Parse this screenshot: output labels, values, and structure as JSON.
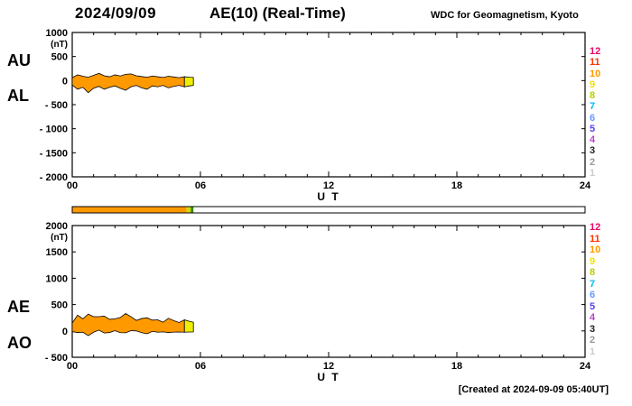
{
  "header": {
    "date": "2024/09/09",
    "title": "AE(10) (Real-Time)",
    "org": "WDC for Geomagnetism, Kyoto"
  },
  "footer": {
    "created_at": "[Created at 2024-09-09 05:40UT]"
  },
  "legend": {
    "items": [
      {
        "label": "12",
        "color": "#ee0066"
      },
      {
        "label": "11",
        "color": "#ff3300"
      },
      {
        "label": "10",
        "color": "#ff9900"
      },
      {
        "label": "9",
        "color": "#f2e200"
      },
      {
        "label": "8",
        "color": "#bbcc00"
      },
      {
        "label": "7",
        "color": "#00bbee"
      },
      {
        "label": "6",
        "color": "#6699ff"
      },
      {
        "label": "5",
        "color": "#5544ee"
      },
      {
        "label": "4",
        "color": "#bb44cc"
      },
      {
        "label": "3",
        "color": "#222222"
      },
      {
        "label": "2",
        "color": "#999999"
      },
      {
        "label": "1",
        "color": "#cccccc"
      }
    ]
  },
  "availability_bar": {
    "xlim": [
      0,
      24
    ],
    "segments": [
      {
        "from": 0,
        "to": 5.35,
        "color": "#ff9900"
      },
      {
        "from": 5.35,
        "to": 5.55,
        "color": "#ccdd00"
      },
      {
        "from": 5.55,
        "to": 5.67,
        "color": "#338800"
      }
    ]
  },
  "chart_data": [
    {
      "type": "area",
      "ylabel": "(nT)",
      "xlabel": "U T",
      "xlim": [
        0,
        24
      ],
      "ylim": [
        -2000,
        1000
      ],
      "xticks": [
        0,
        6,
        12,
        18,
        24
      ],
      "xtick_labels": [
        "00",
        "06",
        "12",
        "18",
        "24"
      ],
      "yticks": [
        1000,
        500,
        0,
        -500,
        -1000,
        -1500,
        -2000
      ],
      "ytick_labels": [
        "1000",
        "500",
        "0",
        "- 500",
        "- 1000",
        "- 1500",
        "- 2000"
      ],
      "left_labels": [
        "AU",
        "AL"
      ],
      "band_color": "#ff9900",
      "tip_color": "#eeee00",
      "tip_from_hour": 5.25,
      "x_hours": [
        0,
        0.25,
        0.5,
        0.75,
        1,
        1.25,
        1.5,
        1.75,
        2,
        2.25,
        2.5,
        2.75,
        3,
        3.25,
        3.5,
        3.75,
        4,
        4.25,
        4.5,
        4.75,
        5,
        5.25,
        5.5,
        5.67
      ],
      "series": [
        {
          "name": "AU",
          "values": [
            60,
            120,
            90,
            70,
            110,
            150,
            100,
            80,
            120,
            95,
            130,
            140,
            100,
            85,
            70,
            95,
            80,
            65,
            90,
            75,
            60,
            80,
            70,
            65
          ]
        },
        {
          "name": "AL",
          "values": [
            -90,
            -180,
            -140,
            -250,
            -160,
            -120,
            -180,
            -140,
            -110,
            -160,
            -200,
            -130,
            -100,
            -150,
            -180,
            -110,
            -130,
            -100,
            -150,
            -120,
            -100,
            -130,
            -110,
            -100
          ]
        }
      ]
    },
    {
      "type": "area",
      "ylabel": "(nT)",
      "xlabel": "U T",
      "xlim": [
        0,
        24
      ],
      "ylim": [
        -500,
        2000
      ],
      "xticks": [
        0,
        6,
        12,
        18,
        24
      ],
      "xtick_labels": [
        "00",
        "06",
        "12",
        "18",
        "24"
      ],
      "yticks": [
        2000,
        1500,
        1000,
        500,
        0,
        -500
      ],
      "ytick_labels": [
        "2000",
        "1500",
        "1000",
        "500",
        "0",
        "- 500"
      ],
      "left_labels": [
        "AE",
        "AO"
      ],
      "band_color": "#ff9900",
      "tip_color": "#eeee00",
      "tip_from_hour": 5.25,
      "x_hours": [
        0,
        0.25,
        0.5,
        0.75,
        1,
        1.25,
        1.5,
        1.75,
        2,
        2.25,
        2.5,
        2.75,
        3,
        3.25,
        3.5,
        3.75,
        4,
        4.25,
        4.5,
        4.75,
        5,
        5.25,
        5.5,
        5.67
      ],
      "series": [
        {
          "name": "AE",
          "values": [
            150,
            300,
            230,
            320,
            270,
            270,
            280,
            220,
            230,
            255,
            330,
            270,
            200,
            235,
            250,
            205,
            210,
            165,
            240,
            195,
            160,
            210,
            180,
            165
          ]
        },
        {
          "name": "AO",
          "values": [
            -15,
            -30,
            -25,
            -90,
            -25,
            15,
            -40,
            -30,
            5,
            -33,
            -35,
            5,
            0,
            -33,
            -55,
            -8,
            -25,
            -18,
            -30,
            -23,
            -20,
            -25,
            -20,
            -18
          ]
        }
      ]
    }
  ]
}
